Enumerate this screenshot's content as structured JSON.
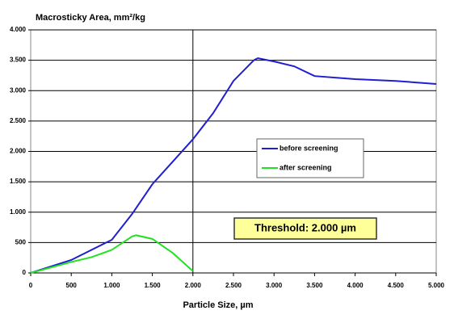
{
  "chart_data": {
    "type": "line",
    "title": "Macrosticky  Area, mm²/kg",
    "xlabel": "Particle Size, µm",
    "annotation": "Threshold: 2.000 µm",
    "vline": 2000,
    "xlim": [
      0,
      5000
    ],
    "ylim": [
      0,
      4000
    ],
    "xticks": [
      0,
      500,
      {
        "value": 1000,
        "label": "1.000"
      },
      {
        "value": 1500,
        "label": "1.500"
      },
      {
        "value": 2000,
        "label": "2.000"
      },
      {
        "value": 2500,
        "label": "2.500"
      },
      {
        "value": 3000,
        "label": "3.000"
      },
      {
        "value": 3500,
        "label": "3.500"
      },
      {
        "value": 4000,
        "label": "4.000"
      },
      {
        "value": 4500,
        "label": "4.500"
      },
      {
        "value": 5000,
        "label": "5.000"
      }
    ],
    "yticks": [
      0,
      500,
      {
        "value": 1000,
        "label": "1.000"
      },
      {
        "value": 1500,
        "label": "1.500"
      },
      {
        "value": 2000,
        "label": "2.000"
      },
      {
        "value": 2500,
        "label": "2.500"
      },
      {
        "value": 3000,
        "label": "3.000"
      },
      {
        "value": 3500,
        "label": "3.500"
      },
      {
        "value": 4000,
        "label": "4.000"
      }
    ],
    "grid": true,
    "series": [
      {
        "name": "before screening",
        "color": "#1f1fd0",
        "x": [
          0,
          500,
          1000,
          1250,
          1500,
          1750,
          2000,
          2250,
          2500,
          2750,
          2800,
          3000,
          3250,
          3500,
          4000,
          4500,
          5000
        ],
        "values": [
          0,
          213,
          545,
          970,
          1460,
          1830,
          2200,
          2630,
          3160,
          3500,
          3535,
          3480,
          3400,
          3240,
          3190,
          3160,
          3110
        ]
      },
      {
        "name": "after screening",
        "color": "#22e022",
        "x": [
          0,
          500,
          750,
          1000,
          1250,
          1300,
          1500,
          1750,
          2000
        ],
        "values": [
          0,
          180,
          260,
          380,
          600,
          620,
          560,
          330,
          30
        ]
      }
    ]
  }
}
